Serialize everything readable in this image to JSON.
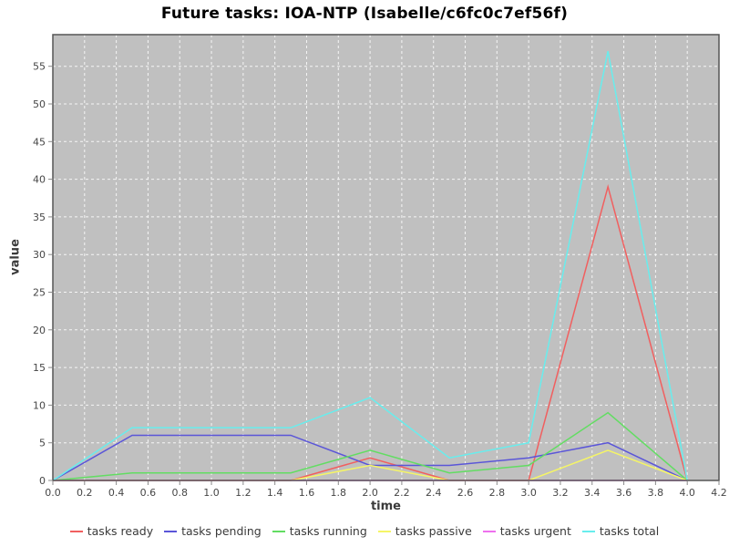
{
  "chart_data": {
    "type": "line",
    "title": "Future tasks: IOA-NTP (Isabelle/c6fc0c7ef56f)",
    "xlabel": "time",
    "ylabel": "value",
    "xlim": [
      0,
      4.2
    ],
    "ylim": [
      0,
      59.2
    ],
    "x_ticks": [
      "0.0",
      "0.2",
      "0.4",
      "0.6",
      "0.8",
      "1.0",
      "1.2",
      "1.4",
      "1.6",
      "1.8",
      "2.0",
      "2.2",
      "2.4",
      "2.6",
      "2.8",
      "3.0",
      "3.2",
      "3.4",
      "3.6",
      "3.8",
      "4.0",
      "4.2"
    ],
    "y_ticks": [
      0,
      5,
      10,
      15,
      20,
      25,
      30,
      35,
      40,
      45,
      50,
      55
    ],
    "grid": true,
    "legend_position": "bottom",
    "plot_background": "#c0c0c0",
    "grid_color": "#ffffff",
    "border_color": "#555555",
    "tick_label_color": "#464646",
    "x": [
      0,
      0.5,
      1.0,
      1.5,
      2.0,
      2.5,
      3.0,
      3.5,
      4.0
    ],
    "series": [
      {
        "name": "tasks ready",
        "color": "#f15f5f",
        "values": [
          0,
          0,
          0,
          0,
          3,
          0,
          0,
          39,
          0
        ]
      },
      {
        "name": "tasks pending",
        "color": "#5a55d8",
        "values": [
          0,
          6,
          6,
          6,
          2,
          2,
          3,
          5,
          0
        ]
      },
      {
        "name": "tasks running",
        "color": "#62dd62",
        "values": [
          0,
          1,
          1,
          1,
          4,
          1,
          2,
          9,
          0
        ]
      },
      {
        "name": "tasks passive",
        "color": "#f5f566",
        "values": [
          0,
          0,
          0,
          0,
          2,
          0,
          0,
          4,
          0
        ]
      },
      {
        "name": "tasks urgent",
        "color": "#ee70ee",
        "values": [
          0,
          0,
          0,
          0,
          0,
          0,
          0,
          0,
          0
        ]
      },
      {
        "name": "tasks total",
        "color": "#68eded",
        "values": [
          0,
          7,
          7,
          7,
          11,
          3,
          5,
          57,
          0
        ]
      }
    ]
  }
}
